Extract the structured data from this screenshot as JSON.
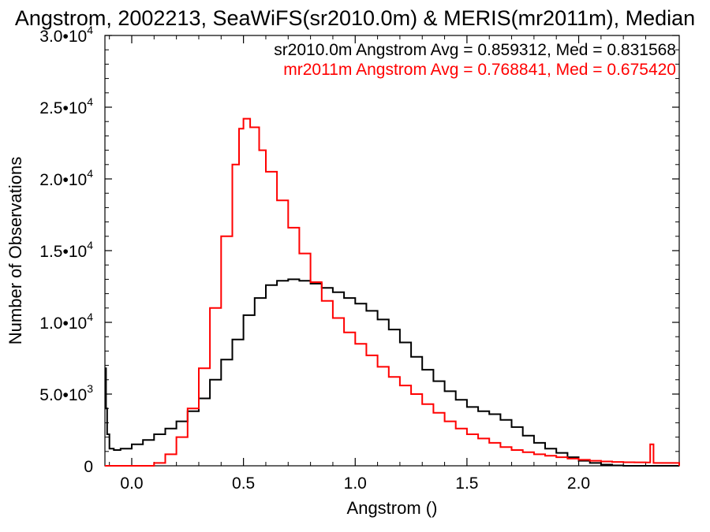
{
  "chart_data": {
    "type": "line",
    "title": "Angstrom, 2002213, SeaWiFS(sr2010.0m) & MERIS(mr2011m), Median",
    "xlabel": "Angstrom ()",
    "ylabel": "Number of Observations",
    "xlim": [
      -0.12,
      2.45
    ],
    "ylim": [
      0,
      30000
    ],
    "x_ticks": [
      {
        "value": 0.0,
        "label": "0.0"
      },
      {
        "value": 0.5,
        "label": "0.5"
      },
      {
        "value": 1.0,
        "label": "1.0"
      },
      {
        "value": 1.5,
        "label": "1.5"
      },
      {
        "value": 2.0,
        "label": "2.0"
      }
    ],
    "y_ticks": [
      {
        "value": 0,
        "mantissa": "0",
        "exp": ""
      },
      {
        "value": 5000,
        "mantissa": "5.0•10",
        "exp": "3"
      },
      {
        "value": 10000,
        "mantissa": "1.0•10",
        "exp": "4"
      },
      {
        "value": 15000,
        "mantissa": "1.5•10",
        "exp": "4"
      },
      {
        "value": 20000,
        "mantissa": "2.0•10",
        "exp": "4"
      },
      {
        "value": 25000,
        "mantissa": "2.5•10",
        "exp": "4"
      },
      {
        "value": 30000,
        "mantissa": "3.0•10",
        "exp": "4"
      }
    ],
    "legend_placement": "top-right",
    "series": [
      {
        "name": "sr2010.0m Angstrom Avg = 0.859312, Med = 0.831568",
        "color": "#000000",
        "points": [
          [
            -0.12,
            6800
          ],
          [
            -0.115,
            4000
          ],
          [
            -0.11,
            2200
          ],
          [
            -0.1,
            1200
          ],
          [
            -0.08,
            1100
          ],
          [
            -0.05,
            1200
          ],
          [
            0.0,
            1500
          ],
          [
            0.05,
            1800
          ],
          [
            0.1,
            2200
          ],
          [
            0.15,
            2600
          ],
          [
            0.2,
            3100
          ],
          [
            0.25,
            3800
          ],
          [
            0.3,
            4700
          ],
          [
            0.35,
            6000
          ],
          [
            0.4,
            7400
          ],
          [
            0.45,
            8800
          ],
          [
            0.5,
            10500
          ],
          [
            0.55,
            11700
          ],
          [
            0.6,
            12600
          ],
          [
            0.65,
            12900
          ],
          [
            0.7,
            13000
          ],
          [
            0.75,
            12900
          ],
          [
            0.8,
            12700
          ],
          [
            0.85,
            12400
          ],
          [
            0.9,
            12100
          ],
          [
            0.95,
            11700
          ],
          [
            1.0,
            11300
          ],
          [
            1.05,
            10800
          ],
          [
            1.1,
            10200
          ],
          [
            1.15,
            9500
          ],
          [
            1.2,
            8600
          ],
          [
            1.25,
            7600
          ],
          [
            1.3,
            6700
          ],
          [
            1.35,
            5900
          ],
          [
            1.4,
            5200
          ],
          [
            1.45,
            4600
          ],
          [
            1.5,
            4100
          ],
          [
            1.55,
            3800
          ],
          [
            1.6,
            3600
          ],
          [
            1.65,
            3200
          ],
          [
            1.7,
            2700
          ],
          [
            1.75,
            2100
          ],
          [
            1.8,
            1600
          ],
          [
            1.85,
            1200
          ],
          [
            1.9,
            900
          ],
          [
            1.95,
            600
          ],
          [
            2.0,
            350
          ],
          [
            2.05,
            200
          ],
          [
            2.1,
            80
          ],
          [
            2.15,
            30
          ],
          [
            2.2,
            0
          ],
          [
            2.45,
            0
          ]
        ]
      },
      {
        "name": "mr2011m Angstrom Avg = 0.768841, Med = 0.675420",
        "color": "#ff0000",
        "points": [
          [
            -0.12,
            0
          ],
          [
            0.05,
            0
          ],
          [
            0.1,
            200
          ],
          [
            0.15,
            800
          ],
          [
            0.2,
            2000
          ],
          [
            0.25,
            4000
          ],
          [
            0.3,
            6800
          ],
          [
            0.35,
            11000
          ],
          [
            0.4,
            16000
          ],
          [
            0.45,
            21000
          ],
          [
            0.48,
            23500
          ],
          [
            0.5,
            24200
          ],
          [
            0.53,
            23600
          ],
          [
            0.57,
            22000
          ],
          [
            0.6,
            20500
          ],
          [
            0.65,
            18500
          ],
          [
            0.7,
            16600
          ],
          [
            0.75,
            14800
          ],
          [
            0.8,
            12800
          ],
          [
            0.85,
            11500
          ],
          [
            0.9,
            10300
          ],
          [
            0.95,
            9300
          ],
          [
            1.0,
            8500
          ],
          [
            1.05,
            7700
          ],
          [
            1.1,
            6900
          ],
          [
            1.15,
            6200
          ],
          [
            1.2,
            5600
          ],
          [
            1.25,
            5000
          ],
          [
            1.3,
            4300
          ],
          [
            1.35,
            3700
          ],
          [
            1.4,
            3100
          ],
          [
            1.45,
            2600
          ],
          [
            1.5,
            2200
          ],
          [
            1.55,
            1900
          ],
          [
            1.6,
            1600
          ],
          [
            1.65,
            1300
          ],
          [
            1.7,
            1100
          ],
          [
            1.75,
            950
          ],
          [
            1.8,
            800
          ],
          [
            1.85,
            700
          ],
          [
            1.9,
            600
          ],
          [
            1.95,
            500
          ],
          [
            2.0,
            420
          ],
          [
            2.05,
            350
          ],
          [
            2.1,
            300
          ],
          [
            2.15,
            270
          ],
          [
            2.2,
            250
          ],
          [
            2.25,
            240
          ],
          [
            2.3,
            230
          ],
          [
            2.32,
            1500
          ],
          [
            2.335,
            200
          ],
          [
            2.45,
            0
          ]
        ]
      }
    ]
  }
}
